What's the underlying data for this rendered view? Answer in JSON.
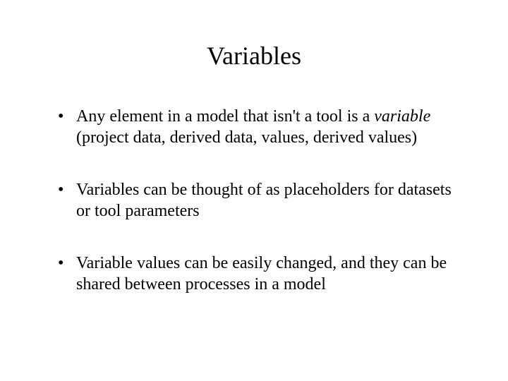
{
  "slide": {
    "title": "Variables",
    "bullets": [
      {
        "pre": "Any element in a model that isn't a tool is a ",
        "italic": "variable",
        "post": " (project data, derived data, values, derived values)"
      },
      {
        "text": "Variables can be thought of as placeholders for datasets or tool parameters"
      },
      {
        "text": "Variable values can be easily changed, and they can be shared between processes in a model"
      }
    ],
    "colors": {
      "background": "#ffffff",
      "text": "#000000"
    },
    "typography": {
      "family": "Times New Roman",
      "title_fontsize": 36,
      "body_fontsize": 24
    }
  }
}
